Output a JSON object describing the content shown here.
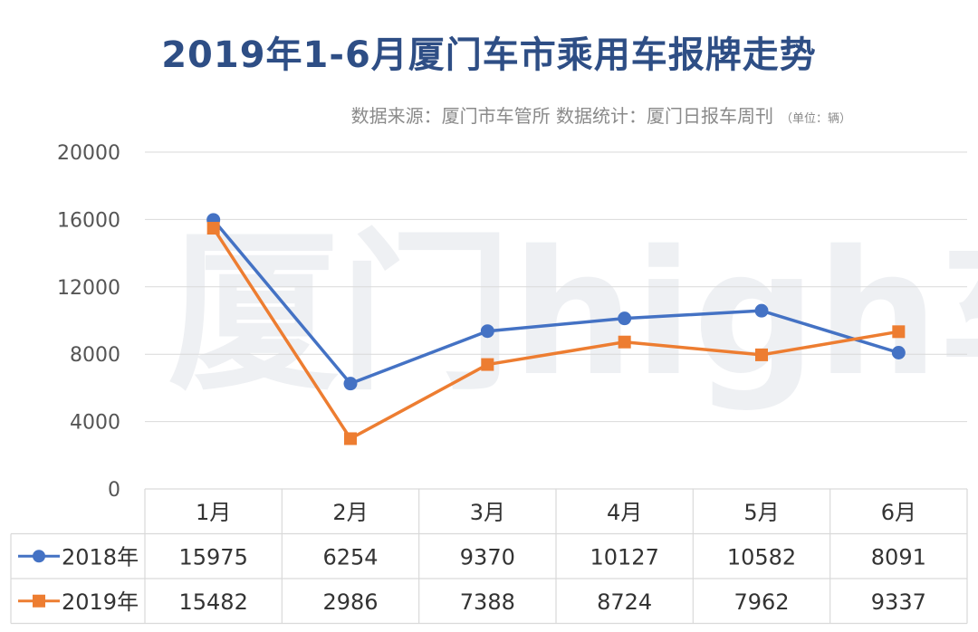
{
  "title": "2019年1-6月厦门车市乘用车报牌走势",
  "subtitle": "数据来源：厦门市车管所  数据统计：厦门日报车周刊",
  "unit_note": "（单位：辆）",
  "watermark": "厦门high车",
  "colors": {
    "title": "#2e4e85",
    "series_2018": "#4472c4",
    "series_2019": "#ed7d31",
    "grid": "#d9d9d9"
  },
  "chart_data": {
    "type": "line",
    "categories": [
      "1月",
      "2月",
      "3月",
      "4月",
      "5月",
      "6月"
    ],
    "series": [
      {
        "name": "2018年",
        "marker": "circle",
        "values": [
          15975,
          6254,
          9370,
          10127,
          10582,
          8091
        ]
      },
      {
        "name": "2019年",
        "marker": "square",
        "values": [
          15482,
          2986,
          7388,
          8724,
          7962,
          9337
        ]
      }
    ],
    "yticks": [
      0,
      4000,
      8000,
      12000,
      16000,
      20000
    ],
    "ylim": [
      0,
      20000
    ],
    "grid": true,
    "legend": "data-table"
  }
}
